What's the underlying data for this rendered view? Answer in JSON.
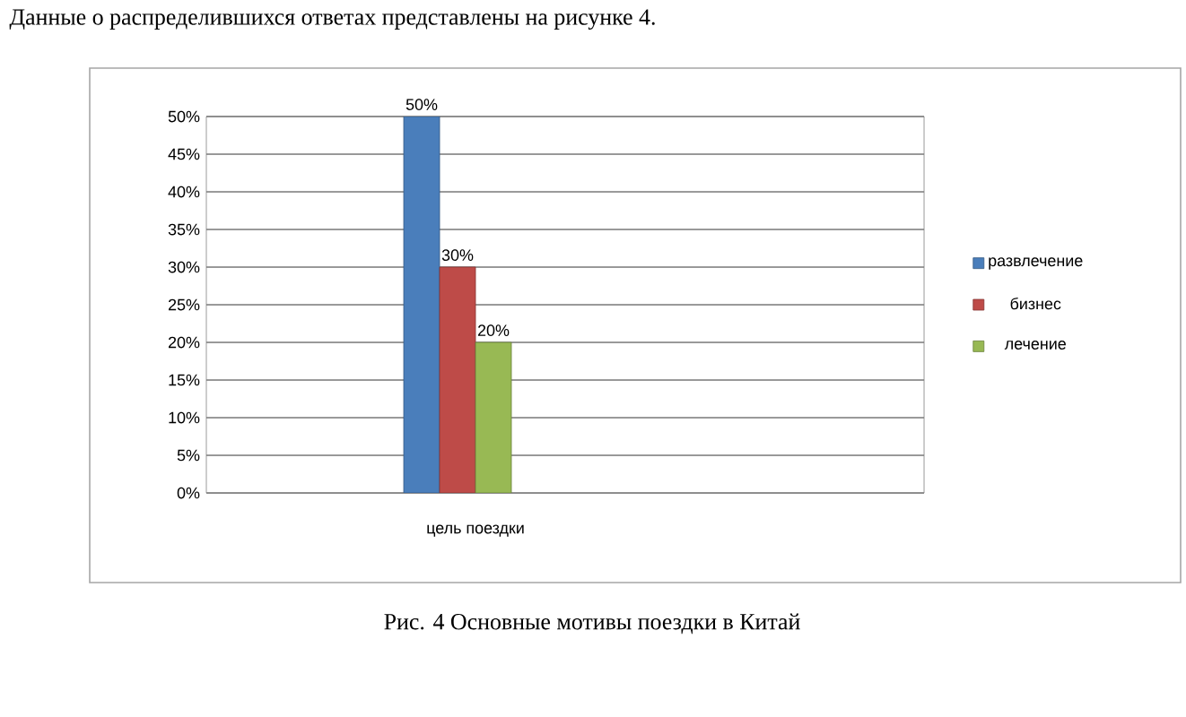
{
  "chart_data": {
    "type": "bar",
    "title": "Данные о распределившихся ответах представлены на рисунке 4.",
    "annotations": [
      "Рис. 4 Основные мотивы поездки в Китай"
    ],
    "categories": [
      "цель поездки"
    ],
    "series": [
      {
        "name": "развлечение",
        "color": "#4a7ebb",
        "values": [
          50
        ],
        "value_labels": [
          "50%"
        ]
      },
      {
        "name": "бизнес",
        "color": "#be4b48",
        "values": [
          30
        ],
        "value_labels": [
          "30%"
        ]
      },
      {
        "name": "лечение",
        "color": "#98b954",
        "values": [
          20
        ],
        "value_labels": [
          "20%"
        ]
      }
    ],
    "ylim": [
      0,
      50
    ],
    "yticks": [
      {
        "value": 0,
        "label": "0%"
      },
      {
        "value": 5,
        "label": "5%"
      },
      {
        "value": 10,
        "label": "10%"
      },
      {
        "value": 15,
        "label": "15%"
      },
      {
        "value": 20,
        "label": "20%"
      },
      {
        "value": 25,
        "label": "25%"
      },
      {
        "value": 30,
        "label": "30%"
      },
      {
        "value": 35,
        "label": "35%"
      },
      {
        "value": 40,
        "label": "40%"
      },
      {
        "value": 45,
        "label": "45%"
      },
      {
        "value": 50,
        "label": "50%"
      }
    ],
    "grid": "y",
    "legend": "right"
  }
}
